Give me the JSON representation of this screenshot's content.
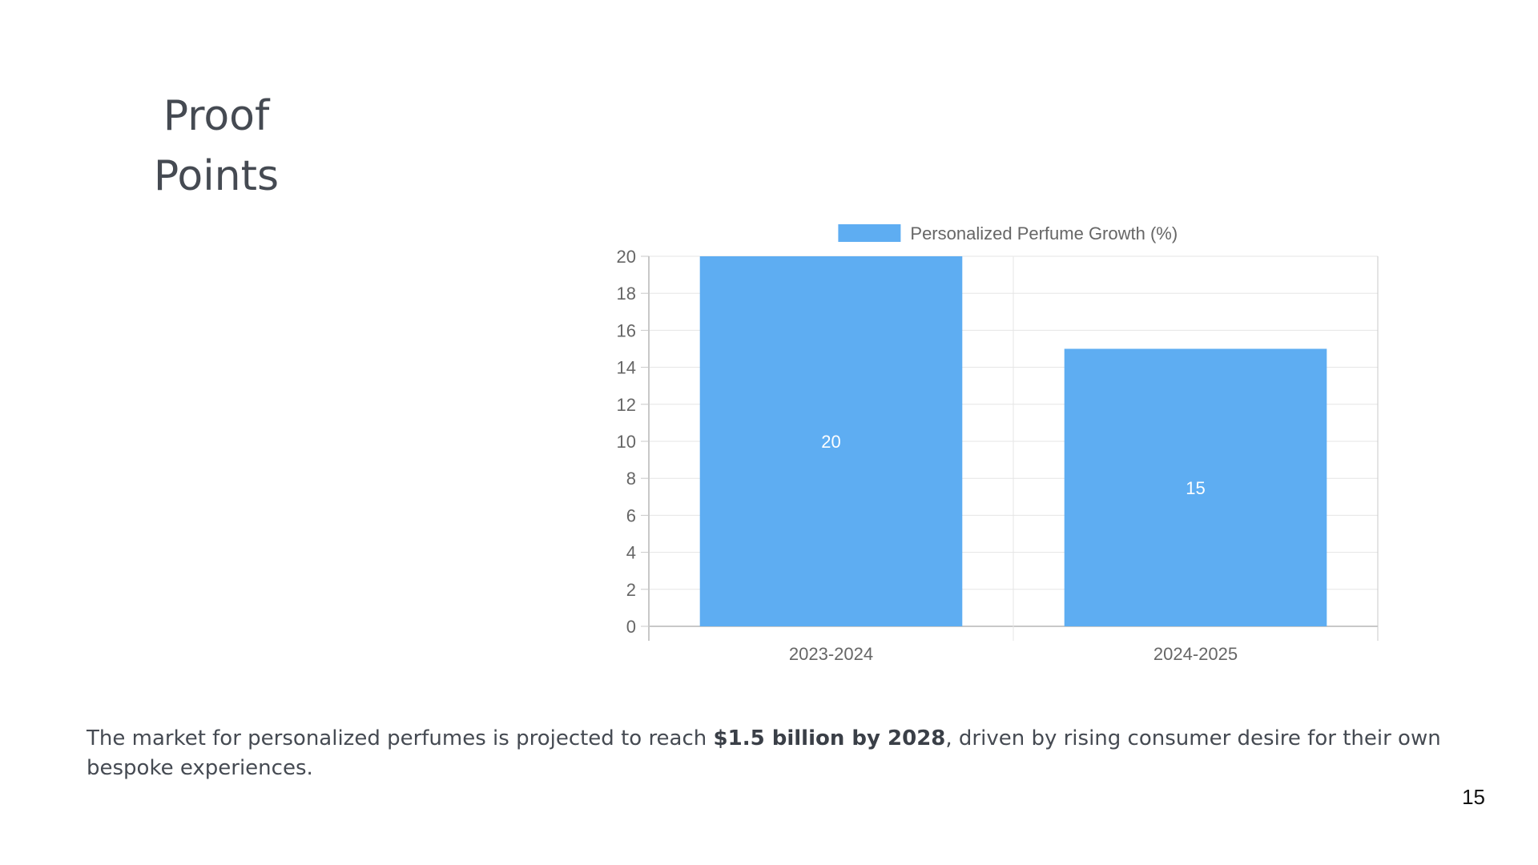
{
  "slide": {
    "title_line1": "Proof",
    "title_line2": "Points",
    "body_prefix": "The market for personalized perfumes is projected to reach ",
    "body_bold": "$1.5 billion by 2028",
    "body_suffix": ", driven by rising consumer desire for their own bespoke experiences.",
    "page_number": "15"
  },
  "colors": {
    "bar": "#5eadf2",
    "grid": "#e5e5e5",
    "axis": "#c8c8c8",
    "text": "#666666"
  },
  "chart_data": {
    "type": "bar",
    "title": "",
    "xlabel": "",
    "ylabel": "",
    "categories": [
      "2023-2024",
      "2024-2025"
    ],
    "series": [
      {
        "name": "Personalized Perfume Growth (%)",
        "values": [
          20,
          15
        ]
      }
    ],
    "ylim": [
      0,
      20
    ],
    "yticks": [
      0,
      2,
      4,
      6,
      8,
      10,
      12,
      14,
      16,
      18,
      20
    ],
    "data_labels": [
      "20",
      "15"
    ],
    "grid": true,
    "legend": "top-center"
  }
}
